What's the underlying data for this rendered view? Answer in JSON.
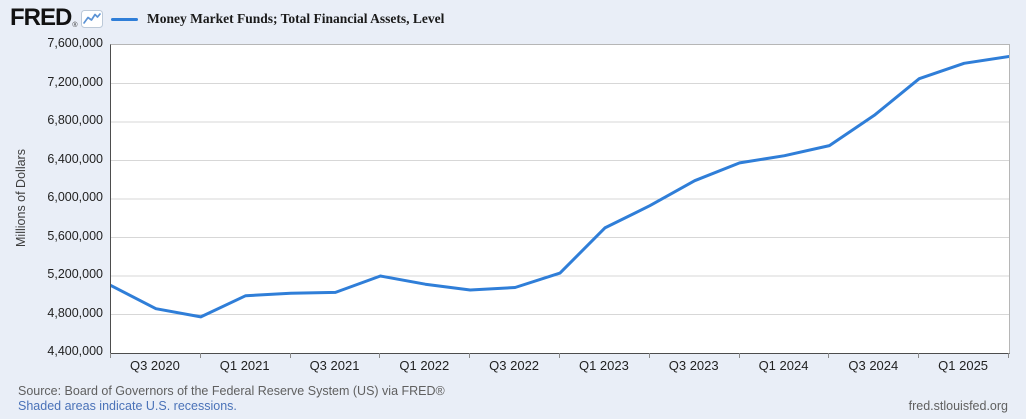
{
  "header": {
    "logo_text": "FRED",
    "logo_registered": "®",
    "logo_icon": "line-chart-icon"
  },
  "chart_data": {
    "type": "line",
    "title": "Money Market Funds; Total Financial Assets, Level",
    "ylabel": "Millions of Dollars",
    "x": [
      "Q2 2020",
      "Q3 2020",
      "Q4 2020",
      "Q1 2021",
      "Q2 2021",
      "Q3 2021",
      "Q4 2021",
      "Q1 2022",
      "Q2 2022",
      "Q3 2022",
      "Q4 2022",
      "Q1 2023",
      "Q2 2023",
      "Q3 2023",
      "Q4 2023",
      "Q1 2024",
      "Q2 2024",
      "Q3 2024",
      "Q4 2024",
      "Q1 2025",
      "Q2 2025"
    ],
    "values": [
      5100000,
      4860000,
      4775000,
      4995000,
      5020000,
      5030000,
      5200000,
      5115000,
      5055000,
      5080000,
      5230000,
      5700000,
      5930000,
      6190000,
      6375000,
      6450000,
      6555000,
      6870000,
      7250000,
      7410000,
      7480000
    ],
    "ylim": [
      4400000,
      7600000
    ],
    "ytick_step": 400000,
    "ytick_labels": [
      "7,600,000",
      "7,200,000",
      "6,800,000",
      "6,400,000",
      "6,000,000",
      "5,600,000",
      "5,200,000",
      "4,800,000",
      "4,400,000"
    ],
    "xtick_labels": [
      "Q3 2020",
      "Q1 2021",
      "Q3 2021",
      "Q1 2022",
      "Q3 2022",
      "Q1 2023",
      "Q3 2023",
      "Q1 2024",
      "Q3 2024",
      "Q1 2025"
    ],
    "xtick_indices": [
      1,
      3,
      5,
      7,
      9,
      11,
      13,
      15,
      17,
      19
    ],
    "grid": true,
    "legend_position": "top-left",
    "line_color": "#2f7ed8"
  },
  "footer": {
    "source_text": "Source: Board of Governors of the Federal Reserve System (US) via FRED®",
    "recession_note": "Shaded areas indicate U.S. recessions.",
    "site_url": "fred.stlouisfed.org"
  },
  "colors": {
    "background": "#e9eef7",
    "plot_background": "#ffffff",
    "line": "#2f7ed8",
    "gridline": "#d7d7d7",
    "link_blue": "#4a72b8"
  }
}
